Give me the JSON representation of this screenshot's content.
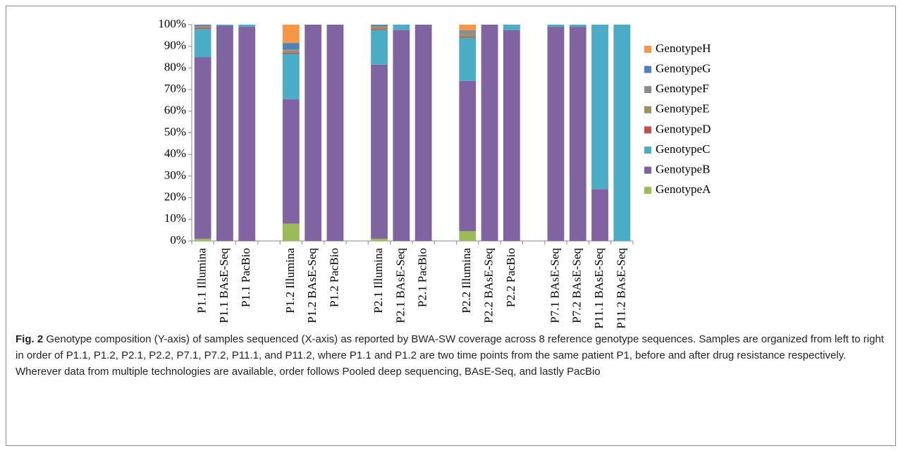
{
  "chart_data": {
    "type": "stacked-bar",
    "categories": [
      "P1.1 Illumina",
      "P1.1 BAsE-Seq",
      "P1.1 PacBio",
      null,
      "P1.2 Illumina",
      "P1.2 BAsE-Seq",
      "P1.2 PacBio",
      null,
      "P2.1 Illumina",
      "P2.1 BAsE-Seq",
      "P2.1 PacBio",
      null,
      "P2.2 Illumina",
      "P2.2 BAsE-Seq",
      "P2.2 PacBio",
      null,
      "P7.1 BAsE-Seq",
      "P7.2 BAsE-Seq",
      "P11.1 BAsE-Seq",
      "P11.2 BAsE-Seq"
    ],
    "series": [
      {
        "name": "GenotypeA",
        "color": "#9bbb59",
        "values": [
          1,
          0,
          0,
          null,
          8,
          0,
          0,
          null,
          1,
          0,
          0,
          null,
          4.5,
          0,
          0,
          null,
          0,
          0,
          0,
          0
        ]
      },
      {
        "name": "GenotypeB",
        "color": "#8064a2",
        "values": [
          84,
          99.5,
          99,
          null,
          57.5,
          100,
          100,
          null,
          80.5,
          97.5,
          100,
          null,
          69.5,
          100,
          97.5,
          null,
          99,
          99,
          24,
          0
        ]
      },
      {
        "name": "GenotypeC",
        "color": "#4bacc6",
        "values": [
          13,
          0.5,
          1,
          null,
          21,
          0,
          0,
          null,
          16,
          2.5,
          0,
          null,
          20,
          0,
          2.5,
          null,
          1,
          1,
          76,
          100
        ]
      },
      {
        "name": "GenotypeD",
        "color": "#c0504d",
        "values": [
          0.5,
          0,
          0,
          null,
          0.5,
          0,
          0,
          null,
          0.5,
          0,
          0,
          null,
          0.5,
          0,
          0,
          null,
          0,
          0,
          0,
          0
        ]
      },
      {
        "name": "GenotypeE",
        "color": "#9c9060",
        "values": [
          0.5,
          0,
          0,
          null,
          1,
          0,
          0,
          null,
          1,
          0,
          0,
          null,
          1,
          0,
          0,
          null,
          0,
          0,
          0,
          0
        ]
      },
      {
        "name": "GenotypeF",
        "color": "#8c8c8c",
        "values": [
          0.5,
          0,
          0,
          null,
          0.5,
          0,
          0,
          null,
          0.5,
          0,
          0,
          null,
          2,
          0,
          0,
          null,
          0,
          0,
          0,
          0
        ]
      },
      {
        "name": "GenotypeG",
        "color": "#4f81bd",
        "values": [
          0.5,
          0,
          0,
          null,
          3,
          0,
          0,
          null,
          0.5,
          0,
          0,
          null,
          0,
          0,
          0,
          null,
          0,
          0,
          0,
          0
        ]
      },
      {
        "name": "GenotypeH",
        "color": "#f79646",
        "values": [
          0,
          0,
          0,
          null,
          8.5,
          0,
          0,
          null,
          0,
          0,
          0,
          null,
          2.5,
          0,
          0,
          null,
          0,
          0,
          0,
          0
        ]
      }
    ],
    "ylim": [
      0,
      100
    ],
    "yticks": [
      {
        "value": 0,
        "label": "0%"
      },
      {
        "value": 10,
        "label": "10%"
      },
      {
        "value": 20,
        "label": "20%"
      },
      {
        "value": 30,
        "label": "30%"
      },
      {
        "value": 40,
        "label": "40%"
      },
      {
        "value": 50,
        "label": "50%"
      },
      {
        "value": 60,
        "label": "60%"
      },
      {
        "value": 70,
        "label": "70%"
      },
      {
        "value": 80,
        "label": "80%"
      },
      {
        "value": 90,
        "label": "90%"
      },
      {
        "value": 100,
        "label": "100%"
      }
    ],
    "legend": "right"
  },
  "caption": {
    "label": "Fig. 2",
    "text": "Genotype composition (Y-axis) of samples sequenced (X-axis) as reported by BWA-SW coverage across 8 reference genotype sequences. Samples are organized from left to right in order of P1.1, P1.2, P2.1, P2.2, P7.1, P7.2, P11.1, and P11.2, where P1.1 and P1.2 are two time points from the same patient P1, before and after drug resistance respectively. Wherever data from multiple technologies are available, order follows Pooled deep sequencing, BAsE-Seq, and lastly PacBio"
  }
}
